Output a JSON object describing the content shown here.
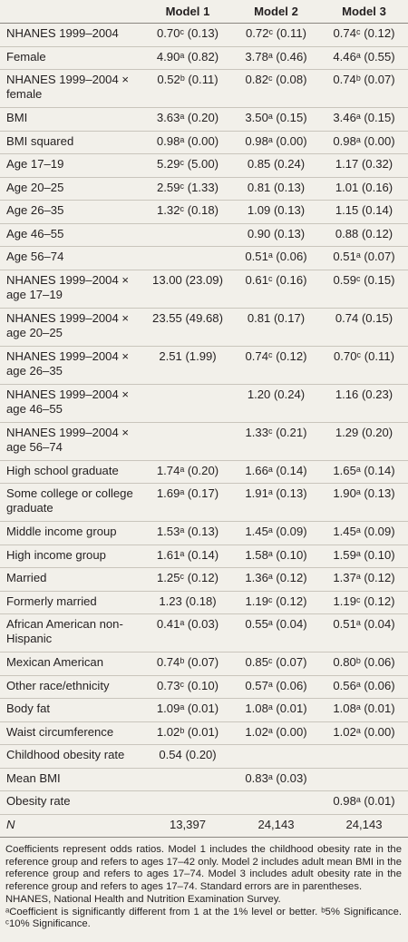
{
  "header": [
    "",
    "Model 1",
    "Model 2",
    "Model 3"
  ],
  "rows": [
    {
      "label": "NHANES 1999–2004",
      "v1": "0.70ᶜ (0.13)",
      "v2": "0.72ᶜ (0.11)",
      "v3": "0.74ᶜ (0.12)"
    },
    {
      "label": "Female",
      "v1": "4.90ᵃ (0.82)",
      "v2": "3.78ᵃ (0.46)",
      "v3": "4.46ᵃ (0.55)"
    },
    {
      "label": "NHANES 1999–2004 × female",
      "v1": "0.52ᵇ (0.11)",
      "v2": "0.82ᶜ (0.08)",
      "v3": "0.74ᵇ (0.07)"
    },
    {
      "label": "BMI",
      "v1": "3.63ᵃ (0.20)",
      "v2": "3.50ᵃ (0.15)",
      "v3": "3.46ᵃ (0.15)"
    },
    {
      "label": "BMI squared",
      "v1": "0.98ᵃ (0.00)",
      "v2": "0.98ᵃ (0.00)",
      "v3": "0.98ᵃ (0.00)"
    },
    {
      "label": "Age 17–19",
      "v1": "5.29ᶜ (5.00)",
      "v2": "0.85 (0.24)",
      "v3": "1.17 (0.32)"
    },
    {
      "label": "Age 20–25",
      "v1": "2.59ᶜ (1.33)",
      "v2": "0.81 (0.13)",
      "v3": "1.01 (0.16)"
    },
    {
      "label": "Age 26–35",
      "v1": "1.32ᶜ (0.18)",
      "v2": "1.09 (0.13)",
      "v3": "1.15 (0.14)"
    },
    {
      "label": "Age 46–55",
      "v1": "",
      "v2": "0.90 (0.13)",
      "v3": "0.88 (0.12)"
    },
    {
      "label": "Age 56–74",
      "v1": "",
      "v2": "0.51ᵃ (0.06)",
      "v3": "0.51ᵃ (0.07)"
    },
    {
      "label": "NHANES 1999–2004 × age 17–19",
      "v1": "13.00 (23.09)",
      "v2": "0.61ᶜ (0.16)",
      "v3": "0.59ᶜ (0.15)"
    },
    {
      "label": "NHANES 1999–2004 × age 20–25",
      "v1": "23.55 (49.68)",
      "v2": "0.81 (0.17)",
      "v3": "0.74 (0.15)"
    },
    {
      "label": "NHANES 1999–2004 × age 26–35",
      "v1": "2.51 (1.99)",
      "v2": "0.74ᶜ (0.12)",
      "v3": "0.70ᶜ (0.11)"
    },
    {
      "label": "NHANES 1999–2004 × age 46–55",
      "v1": "",
      "v2": "1.20 (0.24)",
      "v3": "1.16 (0.23)"
    },
    {
      "label": "NHANES 1999–2004 × age 56–74",
      "v1": "",
      "v2": "1.33ᶜ (0.21)",
      "v3": "1.29 (0.20)"
    },
    {
      "label": "High school graduate",
      "v1": "1.74ᵃ (0.20)",
      "v2": "1.66ᵃ (0.14)",
      "v3": "1.65ᵃ (0.14)"
    },
    {
      "label": "Some college or college graduate",
      "v1": "1.69ᵃ (0.17)",
      "v2": "1.91ᵃ (0.13)",
      "v3": "1.90ᵃ (0.13)"
    },
    {
      "label": "Middle income group",
      "v1": "1.53ᵃ (0.13)",
      "v2": "1.45ᵃ (0.09)",
      "v3": "1.45ᵃ (0.09)"
    },
    {
      "label": "High income group",
      "v1": "1.61ᵃ (0.14)",
      "v2": "1.58ᵃ (0.10)",
      "v3": "1.59ᵃ (0.10)"
    },
    {
      "label": "Married",
      "v1": "1.25ᶜ (0.12)",
      "v2": "1.36ᵃ (0.12)",
      "v3": "1.37ᵃ (0.12)"
    },
    {
      "label": "Formerly married",
      "v1": "1.23 (0.18)",
      "v2": "1.19ᶜ (0.12)",
      "v3": "1.19ᶜ (0.12)"
    },
    {
      "label": "African American non-Hispanic",
      "v1": "0.41ᵃ (0.03)",
      "v2": "0.55ᵃ (0.04)",
      "v3": "0.51ᵃ (0.04)"
    },
    {
      "label": "Mexican American",
      "v1": "0.74ᵇ (0.07)",
      "v2": "0.85ᶜ (0.07)",
      "v3": "0.80ᵇ (0.06)"
    },
    {
      "label": "Other race/ethnicity",
      "v1": "0.73ᶜ (0.10)",
      "v2": "0.57ᵃ (0.06)",
      "v3": "0.56ᵃ (0.06)"
    },
    {
      "label": "Body fat",
      "v1": "1.09ᵃ (0.01)",
      "v2": "1.08ᵃ (0.01)",
      "v3": "1.08ᵃ (0.01)"
    },
    {
      "label": "Waist circumference",
      "v1": "1.02ᵇ (0.01)",
      "v2": "1.02ᵃ (0.00)",
      "v3": "1.02ᵃ (0.00)"
    },
    {
      "label": "Childhood obesity rate",
      "v1": "0.54 (0.20)",
      "v2": "",
      "v3": ""
    },
    {
      "label": "Mean BMI",
      "v1": "",
      "v2": "0.83ᵃ (0.03)",
      "v3": ""
    },
    {
      "label": "Obesity rate",
      "v1": "",
      "v2": "",
      "v3": "0.98ᵃ (0.01)"
    },
    {
      "label": "N",
      "v1": "13,397",
      "v2": "24,143",
      "v3": "24,143"
    }
  ],
  "notes": {
    "coefficients": "Coefficients represent odds ratios. Model 1 includes the childhood obesity rate in the reference group and refers to ages 17–42 only. Model 2 includes adult mean BMI in the reference group and refers to ages 17–74. Model 3 includes adult obesity rate in the reference group and refers to ages 17–74. Standard errors are in parentheses.",
    "abbreviation": "NHANES, National Health and Nutrition Examination Survey.",
    "significance": "ᵃCoefficient is significantly different from 1 at the 1% level or better. ᵇ5% Significance. ᶜ10% Significance."
  }
}
